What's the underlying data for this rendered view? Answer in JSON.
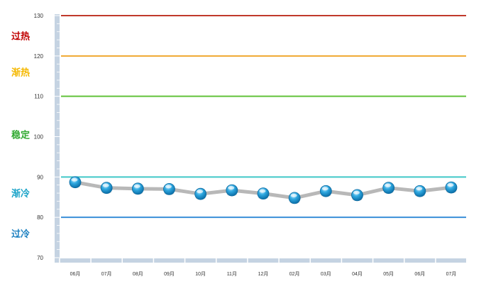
{
  "chart_data": {
    "type": "line",
    "categories": [
      "06月",
      "07月",
      "08月",
      "09月",
      "10月",
      "11月",
      "12月",
      "02月",
      "03月",
      "04月",
      "05月",
      "06月",
      "07月"
    ],
    "series": [
      {
        "values": [
          88.7,
          87.3,
          87.1,
          87.0,
          85.8,
          86.7,
          85.9,
          84.8,
          86.5,
          85.5,
          87.3,
          86.5,
          87.4
        ]
      }
    ],
    "ylim": [
      70,
      130
    ],
    "y_ticks": [
      70,
      80,
      90,
      100,
      110,
      120,
      130
    ],
    "threshold_lines": [
      {
        "value": 130,
        "color": "#c0392b"
      },
      {
        "value": 120,
        "color": "#f0a830"
      },
      {
        "value": 110,
        "color": "#62c23a"
      },
      {
        "value": 90,
        "color": "#40c8c8"
      },
      {
        "value": 80,
        "color": "#3a8fd8"
      }
    ],
    "zone_labels": [
      {
        "text": "过热",
        "value": 125,
        "color": "#c00000"
      },
      {
        "text": "渐热",
        "value": 116,
        "color": "#f5b800"
      },
      {
        "text": "稳定",
        "value": 100.5,
        "color": "#33aa33"
      },
      {
        "text": "渐冷",
        "value": 86,
        "color": "#1aa3c8"
      },
      {
        "text": "过冷",
        "value": 76,
        "color": "#1a7fc0"
      }
    ],
    "xlabel": "",
    "ylabel": "",
    "title": "",
    "grid": false,
    "colors": {
      "line": "#b8b8b8",
      "marker_fill": "#1a9ad6",
      "marker_highlight": "#a8e4ff",
      "marker_stroke": "#0c6aa0",
      "axis_bar": "#c5d3e2",
      "axis_bar_stroke": "#ffffff"
    }
  }
}
